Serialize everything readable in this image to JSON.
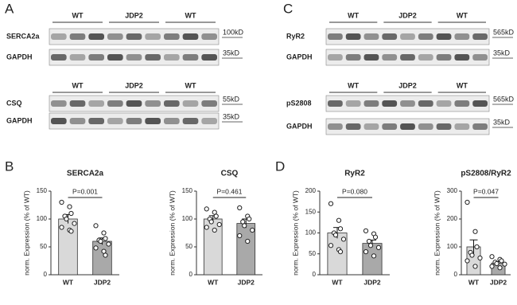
{
  "panel_labels": [
    "A",
    "B",
    "C",
    "D"
  ],
  "blots": [
    {
      "groups": [
        "WT",
        "JDP2",
        "WT"
      ],
      "rows": [
        {
          "label": "SERCA2a",
          "marker": "100kD"
        },
        {
          "label": "GAPDH",
          "marker": "35kD"
        }
      ]
    },
    {
      "groups": [
        "WT",
        "JDP2",
        "WT"
      ],
      "rows": [
        {
          "label": "CSQ",
          "marker": "55kD"
        },
        {
          "label": "GAPDH",
          "marker": "35kD"
        }
      ]
    },
    {
      "groups": [
        "WT",
        "JDP2",
        "WT"
      ],
      "rows": [
        {
          "label": "RyR2",
          "marker": "565kD"
        },
        {
          "label": "GAPDH",
          "marker": "35kD"
        }
      ]
    },
    {
      "groups": [
        "WT",
        "JDP2",
        "WT"
      ],
      "rows": [
        {
          "label": "pS2808",
          "marker": "565kD"
        },
        {
          "label": "GAPDH",
          "marker": "35kD"
        }
      ]
    }
  ],
  "chart_data": [
    {
      "type": "bar",
      "title": "SERCA2a",
      "y_label": "norm. Expression (% of WT)",
      "annotation": "P=0.001",
      "categories": [
        "WT",
        "JDP2"
      ],
      "values": [
        100,
        60
      ],
      "errors": [
        8,
        6
      ],
      "colors": [
        "#d9d9d9",
        "#a9a9a9"
      ],
      "points": [
        [
          130,
          122,
          110,
          105,
          100,
          92,
          85,
          80,
          78
        ],
        [
          88,
          75,
          65,
          62,
          60,
          55,
          48,
          42,
          35
        ]
      ],
      "ylim": [
        0,
        150
      ],
      "yticks": [
        0,
        50,
        100,
        150
      ]
    },
    {
      "type": "bar",
      "title": "CSQ",
      "y_label": "norm. Expression (% of WT)",
      "annotation": "P=0.461",
      "categories": [
        "WT",
        "JDP2"
      ],
      "values": [
        100,
        92
      ],
      "errors": [
        6,
        8
      ],
      "colors": [
        "#d9d9d9",
        "#a9a9a9"
      ],
      "points": [
        [
          118,
          112,
          105,
          100,
          95,
          90,
          85,
          80
        ],
        [
          120,
          105,
          100,
          95,
          88,
          80,
          70,
          60
        ]
      ],
      "ylim": [
        0,
        150
      ],
      "yticks": [
        0,
        50,
        100,
        150
      ]
    },
    {
      "type": "bar",
      "title": "RyR2",
      "y_label": "norm. Expression (% of WT)",
      "annotation": "P=0.080",
      "categories": [
        "WT",
        "JDP2"
      ],
      "values": [
        100,
        75
      ],
      "errors": [
        13,
        8
      ],
      "colors": [
        "#d9d9d9",
        "#a9a9a9"
      ],
      "points": [
        [
          170,
          130,
          110,
          100,
          95,
          85,
          70,
          60,
          55
        ],
        [
          105,
          98,
          90,
          80,
          70,
          65,
          55,
          45
        ]
      ],
      "ylim": [
        0,
        200
      ],
      "yticks": [
        0,
        50,
        100,
        150,
        200
      ]
    },
    {
      "type": "bar",
      "title": "pS2808/RyR2",
      "y_label": "norm. Expression (% of WT)",
      "annotation": "P=0.047",
      "categories": [
        "WT",
        "JDP2"
      ],
      "values": [
        100,
        42
      ],
      "errors": [
        25,
        5
      ],
      "colors": [
        "#d9d9d9",
        "#a9a9a9"
      ],
      "points": [
        [
          260,
          155,
          100,
          80,
          70,
          60,
          50,
          30
        ],
        [
          65,
          55,
          50,
          45,
          40,
          38,
          30,
          25
        ]
      ],
      "ylim": [
        0,
        300
      ],
      "yticks": [
        0,
        100,
        200,
        300
      ]
    }
  ]
}
